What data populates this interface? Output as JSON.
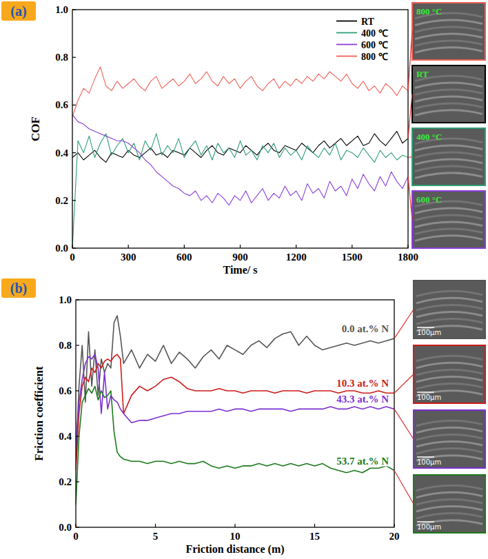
{
  "chart_data": [
    {
      "type": "line",
      "panel_label": "(a)",
      "x_label": "Time/ s",
      "y_label": "COF",
      "x": [
        0,
        30,
        60,
        90,
        120,
        150,
        180,
        210,
        240,
        270,
        300,
        330,
        360,
        390,
        420,
        450,
        480,
        510,
        540,
        570,
        600,
        630,
        660,
        690,
        720,
        750,
        780,
        810,
        840,
        870,
        900,
        930,
        960,
        990,
        1020,
        1050,
        1080,
        1110,
        1140,
        1170,
        1200,
        1230,
        1260,
        1290,
        1320,
        1350,
        1380,
        1410,
        1440,
        1470,
        1500,
        1530,
        1560,
        1590,
        1620,
        1650,
        1680,
        1710,
        1740,
        1770,
        1800
      ],
      "xlim": [
        0,
        1800
      ],
      "xticks": [
        0,
        300,
        600,
        900,
        1200,
        1500,
        1800
      ],
      "ylim": [
        0,
        1
      ],
      "yticks": [
        {
          "value": 0,
          "label": "0.0"
        },
        0.2,
        0.4,
        0.6,
        0.8,
        {
          "value": 1,
          "label": "1.0"
        }
      ],
      "grid": false,
      "legend": "top-right",
      "series": [
        {
          "name": "RT",
          "color": "#000000",
          "values": [
            0.38,
            0.4,
            0.37,
            0.39,
            0.41,
            0.38,
            0.36,
            0.4,
            0.39,
            0.38,
            0.41,
            0.39,
            0.38,
            0.4,
            0.42,
            0.39,
            0.4,
            0.38,
            0.41,
            0.4,
            0.39,
            0.42,
            0.4,
            0.38,
            0.41,
            0.43,
            0.4,
            0.39,
            0.42,
            0.41,
            0.4,
            0.43,
            0.41,
            0.39,
            0.42,
            0.44,
            0.41,
            0.4,
            0.43,
            0.42,
            0.41,
            0.44,
            0.42,
            0.4,
            0.43,
            0.45,
            0.42,
            0.44,
            0.46,
            0.43,
            0.45,
            0.47,
            0.43,
            0.44,
            0.48,
            0.45,
            0.43,
            0.46,
            0.49,
            0.44,
            0.46
          ]
        },
        {
          "name": "400 ℃",
          "color": "#2e9e74",
          "values": [
            0.0,
            0.45,
            0.4,
            0.47,
            0.38,
            0.44,
            0.48,
            0.39,
            0.43,
            0.46,
            0.4,
            0.44,
            0.37,
            0.45,
            0.41,
            0.48,
            0.39,
            0.43,
            0.4,
            0.46,
            0.38,
            0.42,
            0.45,
            0.39,
            0.43,
            0.37,
            0.44,
            0.4,
            0.42,
            0.38,
            0.45,
            0.39,
            0.41,
            0.37,
            0.43,
            0.4,
            0.44,
            0.38,
            0.42,
            0.39,
            0.41,
            0.37,
            0.43,
            0.4,
            0.38,
            0.42,
            0.39,
            0.44,
            0.37,
            0.41,
            0.4,
            0.38,
            0.42,
            0.39,
            0.36,
            0.41,
            0.38,
            0.4,
            0.37,
            0.39,
            0.38
          ]
        },
        {
          "name": "600 ℃",
          "color": "#8a3ddb",
          "values": [
            0.56,
            0.53,
            0.52,
            0.5,
            0.49,
            0.48,
            0.47,
            0.46,
            0.45,
            0.45,
            0.44,
            0.42,
            0.4,
            0.37,
            0.35,
            0.32,
            0.3,
            0.28,
            0.26,
            0.25,
            0.23,
            0.22,
            0.24,
            0.2,
            0.22,
            0.19,
            0.23,
            0.21,
            0.18,
            0.22,
            0.2,
            0.24,
            0.19,
            0.22,
            0.25,
            0.2,
            0.23,
            0.21,
            0.26,
            0.22,
            0.24,
            0.2,
            0.27,
            0.23,
            0.25,
            0.21,
            0.28,
            0.24,
            0.26,
            0.22,
            0.29,
            0.25,
            0.31,
            0.27,
            0.24,
            0.3,
            0.26,
            0.32,
            0.28,
            0.25,
            0.3
          ]
        },
        {
          "name": "800 ℃",
          "color": "#f0605a",
          "values": [
            0.55,
            0.62,
            0.67,
            0.65,
            0.71,
            0.76,
            0.68,
            0.66,
            0.7,
            0.67,
            0.69,
            0.71,
            0.68,
            0.66,
            0.7,
            0.72,
            0.67,
            0.69,
            0.71,
            0.68,
            0.7,
            0.73,
            0.69,
            0.71,
            0.74,
            0.7,
            0.68,
            0.72,
            0.69,
            0.71,
            0.67,
            0.7,
            0.72,
            0.68,
            0.66,
            0.69,
            0.71,
            0.67,
            0.7,
            0.68,
            0.71,
            0.69,
            0.72,
            0.7,
            0.73,
            0.71,
            0.74,
            0.72,
            0.7,
            0.73,
            0.69,
            0.67,
            0.7,
            0.66,
            0.68,
            0.65,
            0.69,
            0.67,
            0.64,
            0.68,
            0.66
          ]
        }
      ],
      "insets": [
        {
          "label": "800 °C",
          "color": "#f0605a"
        },
        {
          "label": "RT",
          "color": "#000000"
        },
        {
          "label": "400 °C",
          "color": "#2e9e74"
        },
        {
          "label": "600 °C",
          "color": "#8a3ddb"
        }
      ]
    },
    {
      "type": "line",
      "panel_label": "(b)",
      "x_label": "Friction distance (m)",
      "y_label": "Friction coefficient",
      "x": [
        0,
        0.2,
        0.4,
        0.6,
        0.8,
        1,
        1.2,
        1.4,
        1.6,
        1.8,
        2,
        2.2,
        2.4,
        2.6,
        2.8,
        3,
        3.5,
        4,
        4.5,
        5,
        5.5,
        6,
        6.5,
        7,
        7.5,
        8,
        8.5,
        9,
        9.5,
        10,
        10.5,
        11,
        11.5,
        12,
        12.5,
        13,
        13.5,
        14,
        14.5,
        15,
        15.5,
        16,
        16.5,
        17,
        17.5,
        18,
        18.5,
        19,
        19.5,
        20
      ],
      "xlim": [
        0,
        20
      ],
      "xticks": [
        0,
        5,
        10,
        15,
        20
      ],
      "ylim": [
        0,
        1
      ],
      "yticks": [
        {
          "value": 0,
          "label": "0.0"
        },
        0.2,
        0.4,
        0.6,
        0.8,
        {
          "value": 1,
          "label": "1.0"
        }
      ],
      "grid": false,
      "series": [
        {
          "name": "0.0 at.% N",
          "color": "#555555",
          "values": [
            0.3,
            0.62,
            0.8,
            0.55,
            0.86,
            0.62,
            0.78,
            0.58,
            0.74,
            0.68,
            0.72,
            0.7,
            0.9,
            0.93,
            0.84,
            0.72,
            0.78,
            0.7,
            0.76,
            0.73,
            0.8,
            0.72,
            0.77,
            0.74,
            0.7,
            0.75,
            0.78,
            0.74,
            0.8,
            0.78,
            0.76,
            0.8,
            0.82,
            0.79,
            0.83,
            0.85,
            0.86,
            0.8,
            0.84,
            0.8,
            0.78,
            0.79,
            0.8,
            0.81,
            0.8,
            0.81,
            0.82,
            0.81,
            0.82,
            0.83
          ]
        },
        {
          "name": "10.3 at.% N",
          "color": "#cc1a1a",
          "values": [
            0.25,
            0.5,
            0.62,
            0.66,
            0.64,
            0.7,
            0.68,
            0.72,
            0.7,
            0.73,
            0.74,
            0.73,
            0.75,
            0.76,
            0.74,
            0.5,
            0.58,
            0.62,
            0.6,
            0.62,
            0.65,
            0.66,
            0.64,
            0.61,
            0.6,
            0.6,
            0.6,
            0.61,
            0.6,
            0.6,
            0.59,
            0.6,
            0.6,
            0.6,
            0.59,
            0.6,
            0.6,
            0.6,
            0.59,
            0.6,
            0.6,
            0.6,
            0.59,
            0.6,
            0.6,
            0.59,
            0.59,
            0.6,
            0.59,
            0.59
          ]
        },
        {
          "name": "43.3 at.% N",
          "color": "#7b2fd0",
          "values": [
            0.35,
            0.55,
            0.65,
            0.72,
            0.75,
            0.74,
            0.76,
            0.7,
            0.5,
            0.68,
            0.52,
            0.58,
            0.56,
            0.55,
            0.52,
            0.5,
            0.46,
            0.47,
            0.47,
            0.48,
            0.49,
            0.5,
            0.5,
            0.51,
            0.51,
            0.51,
            0.51,
            0.52,
            0.51,
            0.52,
            0.52,
            0.51,
            0.52,
            0.52,
            0.52,
            0.52,
            0.51,
            0.52,
            0.52,
            0.52,
            0.52,
            0.53,
            0.52,
            0.52,
            0.53,
            0.52,
            0.53,
            0.52,
            0.53,
            0.52
          ]
        },
        {
          "name": "53.7 at.% N",
          "color": "#1a7a1a",
          "values": [
            0.1,
            0.4,
            0.55,
            0.58,
            0.61,
            0.59,
            0.62,
            0.56,
            0.6,
            0.57,
            0.58,
            0.6,
            0.42,
            0.33,
            0.31,
            0.3,
            0.29,
            0.29,
            0.28,
            0.29,
            0.29,
            0.28,
            0.29,
            0.28,
            0.28,
            0.29,
            0.27,
            0.26,
            0.27,
            0.26,
            0.27,
            0.27,
            0.28,
            0.27,
            0.28,
            0.27,
            0.28,
            0.27,
            0.28,
            0.27,
            0.28,
            0.26,
            0.25,
            0.24,
            0.25,
            0.24,
            0.26,
            0.26,
            0.27,
            0.25
          ]
        }
      ],
      "insets": [
        {
          "label": "100μm",
          "color": "#555555"
        },
        {
          "label": "100μm",
          "color": "#cc1a1a"
        },
        {
          "label": "100μm",
          "color": "#7b2fd0"
        },
        {
          "label": "100μm",
          "color": "#1a7a1a"
        }
      ]
    }
  ]
}
